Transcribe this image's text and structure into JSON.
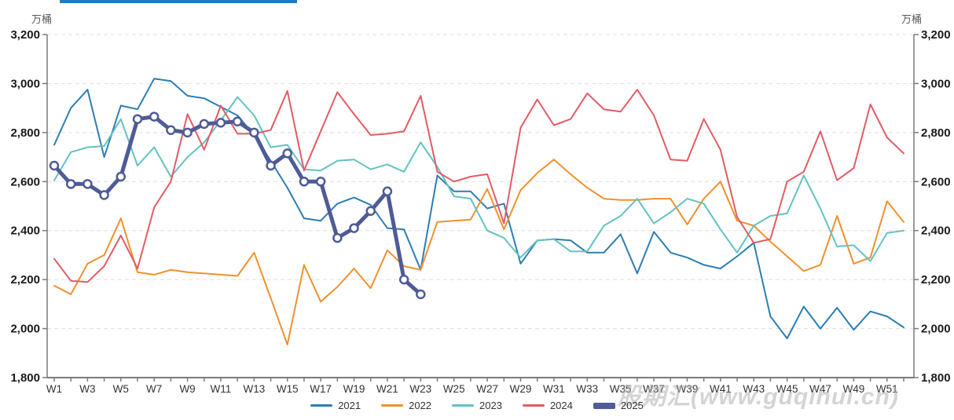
{
  "page": {
    "top_accent_color": "#2878be"
  },
  "watermark": {
    "text": "股期汇(www.guqihui.cn)"
  },
  "chart_data": {
    "type": "line",
    "title": "",
    "unit_label_left": "万桶",
    "unit_label_right": "万桶",
    "xlabel": "",
    "ylabel": "万桶",
    "ylim": [
      1800,
      3200
    ],
    "y_ticks": [
      1800,
      2000,
      2200,
      2400,
      2600,
      2800,
      3000,
      3200
    ],
    "weeks": 52,
    "x_tick_labels": [
      "W1",
      "W3",
      "W5",
      "W7",
      "W9",
      "W11",
      "W13",
      "W15",
      "W17",
      "W19",
      "W21",
      "W23",
      "W25",
      "W27",
      "W29",
      "W31",
      "W33",
      "W35",
      "W37",
      "W39",
      "W41",
      "W43",
      "W45",
      "W47",
      "W49",
      "W51"
    ],
    "grid": "horizontal-dashed",
    "legend_position": "bottom-center",
    "axis_color": "#7a7a7a",
    "grid_color": "#dedede",
    "series": [
      {
        "name": "2021",
        "color": "#2e7db3",
        "width": 2,
        "markers": false,
        "values": [
          2750,
          2900,
          2975,
          2700,
          2910,
          2895,
          3020,
          3010,
          2950,
          2940,
          2905,
          2870,
          2790,
          2685,
          2575,
          2450,
          2440,
          2510,
          2535,
          2505,
          2410,
          2405,
          2240,
          2625,
          2560,
          2560,
          2490,
          2510,
          2265,
          2360,
          2365,
          2360,
          2310,
          2310,
          2385,
          2225,
          2395,
          2310,
          2290,
          2260,
          2245,
          2295,
          2350,
          2050,
          1960,
          2090,
          2000,
          2085,
          1995,
          2070,
          2050,
          2005
        ]
      },
      {
        "name": "2022",
        "color": "#f0912d",
        "width": 2,
        "markers": false,
        "values": [
          2175,
          2140,
          2265,
          2300,
          2450,
          2230,
          2220,
          2240,
          2230,
          2225,
          2220,
          2215,
          2310,
          2125,
          1935,
          2260,
          2110,
          2170,
          2245,
          2165,
          2320,
          2255,
          2240,
          2435,
          2440,
          2445,
          2570,
          2405,
          2565,
          2635,
          2690,
          2630,
          2575,
          2530,
          2525,
          2525,
          2530,
          2530,
          2425,
          2530,
          2600,
          2440,
          2420,
          2355,
          2295,
          2235,
          2260,
          2460,
          2265,
          2290,
          2520,
          2435
        ]
      },
      {
        "name": "2023",
        "color": "#63c2c1",
        "width": 2,
        "markers": false,
        "values": [
          2605,
          2720,
          2740,
          2745,
          2855,
          2665,
          2740,
          2620,
          2700,
          2760,
          2850,
          2945,
          2870,
          2740,
          2750,
          2650,
          2645,
          2685,
          2690,
          2650,
          2670,
          2640,
          2760,
          2660,
          2540,
          2530,
          2400,
          2370,
          2290,
          2360,
          2365,
          2315,
          2315,
          2420,
          2460,
          2530,
          2430,
          2475,
          2530,
          2510,
          2405,
          2310,
          2420,
          2460,
          2470,
          2625,
          2490,
          2335,
          2340,
          2275,
          2390,
          2400
        ]
      },
      {
        "name": "2024",
        "color": "#e25c64",
        "width": 2,
        "markers": false,
        "values": [
          2285,
          2195,
          2190,
          2255,
          2380,
          2245,
          2495,
          2600,
          2875,
          2730,
          2910,
          2795,
          2795,
          2810,
          2970,
          2645,
          2805,
          2965,
          2875,
          2790,
          2795,
          2805,
          2950,
          2640,
          2600,
          2620,
          2630,
          2430,
          2820,
          2935,
          2830,
          2855,
          2960,
          2895,
          2885,
          2975,
          2870,
          2690,
          2685,
          2855,
          2730,
          2455,
          2350,
          2365,
          2600,
          2640,
          2805,
          2605,
          2655,
          2915,
          2780,
          2715
        ]
      },
      {
        "name": "2025",
        "color": "#4e5b96",
        "width": 5,
        "markers": true,
        "values": [
          2665,
          2590,
          2590,
          2545,
          2620,
          2855,
          2865,
          2810,
          2800,
          2835,
          2840,
          2845,
          2800,
          2665,
          2715,
          2600,
          2600,
          2370,
          2410,
          2480,
          2560,
          2200,
          2140
        ]
      }
    ]
  }
}
